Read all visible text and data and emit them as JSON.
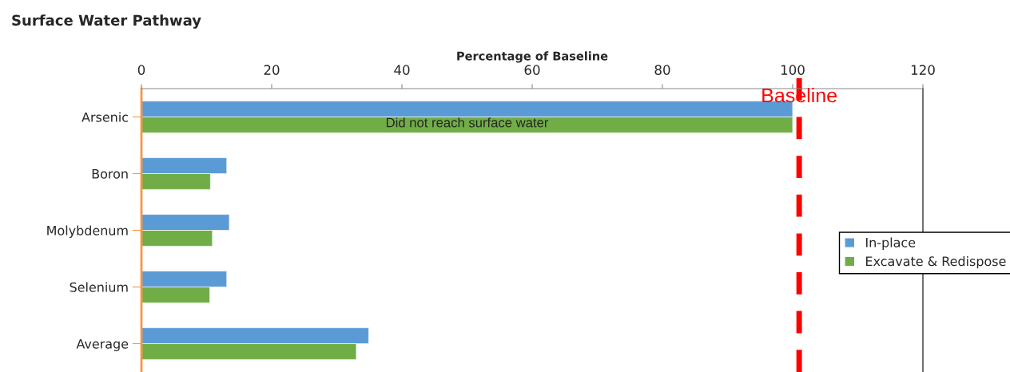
{
  "chart_data": {
    "type": "bar",
    "orientation": "horizontal",
    "title": "Surface Water Pathway",
    "xlabel": "Percentage of Baseline",
    "categories": [
      "Arsenic",
      "Boron",
      "Molybdenum",
      "Selenium",
      "Average"
    ],
    "series": [
      {
        "name": "In-place",
        "color": "#5b9bd5",
        "values": [
          100,
          13.1,
          13.5,
          13.1,
          34.9
        ]
      },
      {
        "name": "Excavate & Redispose",
        "color": "#70ad47",
        "values": [
          100,
          10.6,
          10.9,
          10.5,
          33.0
        ]
      }
    ],
    "xlim": [
      0,
      120
    ],
    "xticks": [
      0,
      20,
      40,
      60,
      80,
      100,
      120
    ],
    "ref_lines": [
      {
        "axis": "x",
        "value": 101,
        "label": "Baseline",
        "color": "#ff0000",
        "line_style": "dashed"
      }
    ],
    "annotations": [
      {
        "text": "Did not reach surface water",
        "x": 50,
        "y": "Arsenic"
      }
    ],
    "legend": "right",
    "grid": false
  }
}
